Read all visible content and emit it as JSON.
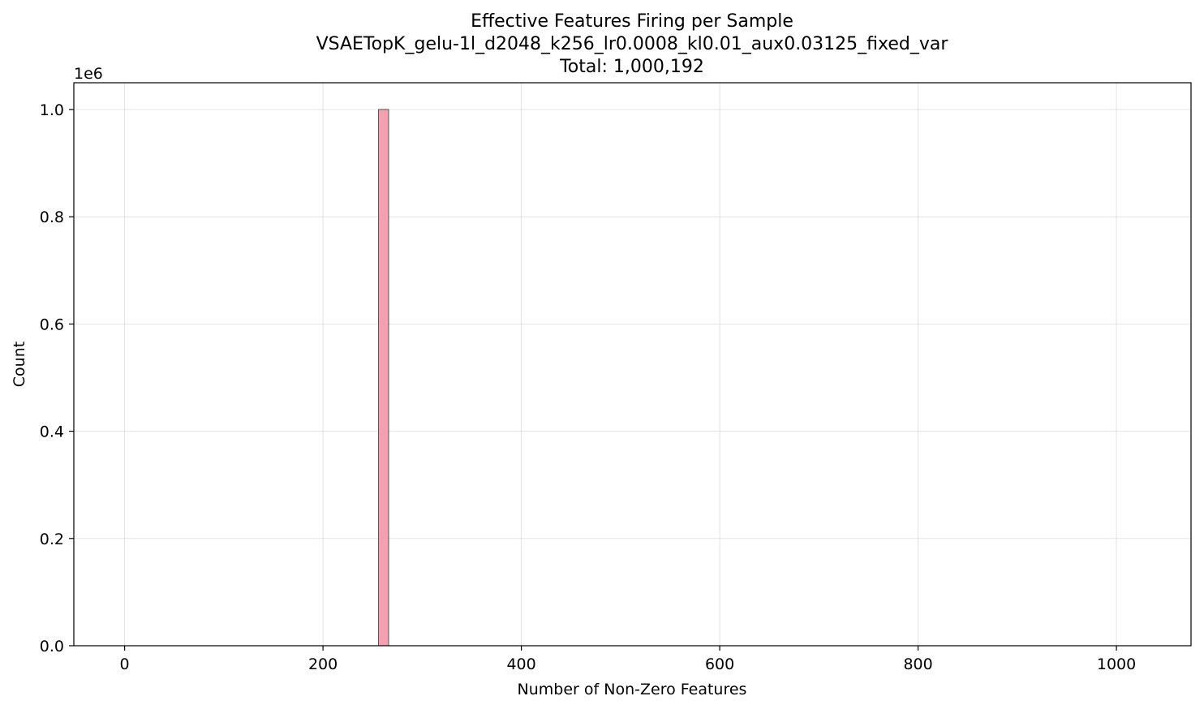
{
  "chart_data": {
    "type": "bar",
    "title_lines": [
      "Effective Features Firing per Sample",
      "VSAETopK_gelu-1l_d2048_k256_lr0.0008_kl0.01_aux0.03125_fixed_var",
      "Total: 1,000,192"
    ],
    "xlabel": "Number of Non-Zero Features",
    "ylabel": "Count",
    "y_offset_label": "1e6",
    "xlim": [
      -51.2,
      1075.2
    ],
    "ylim": [
      0,
      1050000
    ],
    "x_ticks": [
      0,
      200,
      400,
      600,
      800,
      1000
    ],
    "x_tick_labels": [
      "0",
      "200",
      "400",
      "600",
      "800",
      "1000"
    ],
    "y_ticks": [
      0,
      200000,
      400000,
      600000,
      800000,
      1000000
    ],
    "y_tick_labels": [
      "0.0",
      "0.2",
      "0.4",
      "0.6",
      "0.8",
      "1.0"
    ],
    "grid": true,
    "bars": [
      {
        "x_start": 256,
        "x_end": 266.2,
        "value": 1000192
      }
    ],
    "colors": {
      "bar_fill": "#f4a0b0",
      "bar_edge": "#333333"
    }
  }
}
